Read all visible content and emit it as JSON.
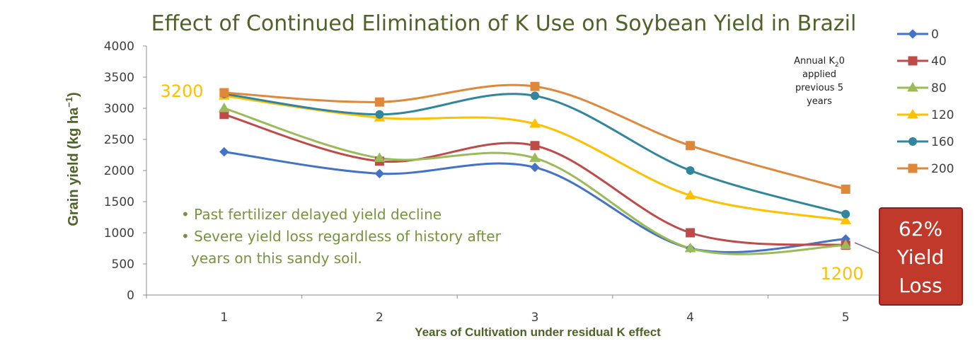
{
  "chart_data": {
    "type": "line",
    "title": "Effect of Continued Elimination of K Use on Soybean Yield in Brazil",
    "xlabel": "Years of Cultivation under residual K effect",
    "ylabel": "Grain yield (kg ha",
    "ylabel_sup": "−1",
    "ylabel_close": ")",
    "x": [
      1,
      2,
      3,
      4,
      5
    ],
    "x_tick_labels": [
      "1",
      "2",
      "3",
      "4",
      "5"
    ],
    "ylim": [
      0,
      4000
    ],
    "yticks": [
      0,
      500,
      1000,
      1500,
      2000,
      2500,
      3000,
      3500,
      4000
    ],
    "y_tick_labels": [
      "0",
      "500",
      "1000",
      "1500",
      "2000",
      "2500",
      "3000",
      "3500",
      "4000"
    ],
    "grid": false,
    "smooth": true,
    "legend_position": "right",
    "series": [
      {
        "name": "0",
        "color": "#4472c4",
        "marker": "diamond",
        "values": [
          2300,
          1950,
          2050,
          750,
          900
        ]
      },
      {
        "name": "40",
        "color": "#be4b48",
        "marker": "square",
        "values": [
          2900,
          2150,
          2400,
          1000,
          800
        ]
      },
      {
        "name": "80",
        "color": "#9bbb59",
        "marker": "triangle",
        "values": [
          3000,
          2200,
          2200,
          750,
          800
        ]
      },
      {
        "name": "120",
        "color": "#ffc000",
        "marker": "triangle",
        "values": [
          3200,
          2850,
          2750,
          1600,
          1200
        ]
      },
      {
        "name": "160",
        "color": "#31859c",
        "marker": "circle",
        "values": [
          3230,
          2900,
          3200,
          2000,
          1300
        ]
      },
      {
        "name": "200",
        "color": "#e0883a",
        "marker": "square",
        "values": [
          3250,
          3100,
          3350,
          2400,
          1700
        ]
      }
    ],
    "legend_note": {
      "line1_prefix": "Annual K",
      "line1_sub": "2",
      "line1_suffix": "0",
      "line2": "applied",
      "line3": "previous 5",
      "line4": "years"
    },
    "annotations": {
      "start_value": "3200",
      "end_value": "1200",
      "bullets": [
        "• Past fertilizer delayed yield decline",
        "• Severe yield loss regardless of history after",
        "years on this sandy soil."
      ],
      "loss_box": [
        "62%",
        "Yield",
        "Loss"
      ],
      "loss_box_color": "#c0392b"
    }
  }
}
